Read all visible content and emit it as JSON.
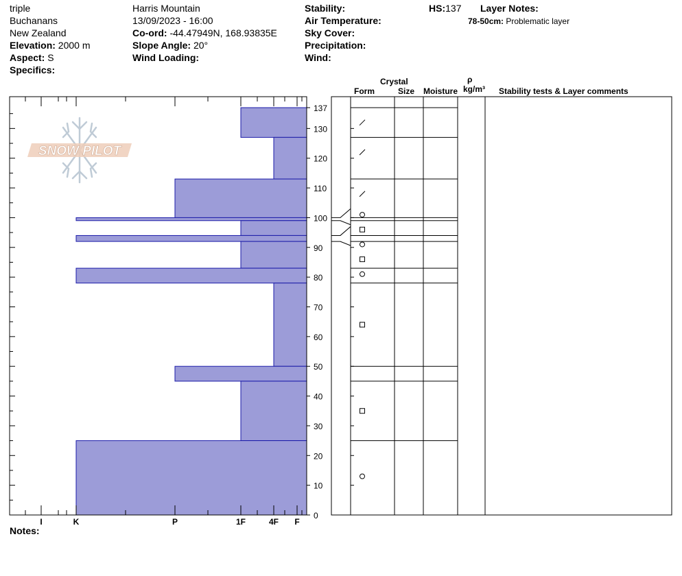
{
  "header": {
    "observer": "triple",
    "range": "Buchanans",
    "country": "New Zealand",
    "elevation_label": "Elevation:",
    "elevation_value": "2000 m",
    "aspect_label": "Aspect:",
    "aspect_value": "S",
    "specifics_label": "Specifics:",
    "location": "Harris Mountain",
    "datetime": "13/09/2023 - 16:00",
    "coord_label": "Co-ord:",
    "coord_value": "-44.47949N, 168.93835E",
    "slope_label": "Slope Angle:",
    "slope_value": "20°",
    "wind_loading_label": "Wind Loading:",
    "stability_label": "Stability:",
    "air_temp_label": "Air Temperature:",
    "sky_cover_label": "Sky Cover:",
    "precip_label": "Precipitation:",
    "wind_label": "Wind:",
    "hs_label": "HS:",
    "hs_value": "137",
    "layer_notes_label": "Layer Notes:",
    "layer_note_range": "78-50cm:",
    "layer_note_text": "Problematic layer"
  },
  "columns": {
    "crystal": "Crystal",
    "form": "Form",
    "size": "Size",
    "moisture": "Moisture",
    "rho": "ρ",
    "density_unit": "kg/m³",
    "stability": "Stability tests & Layer comments"
  },
  "logo": {
    "text": "SNOW PILOT"
  },
  "notes_label": "Notes:",
  "colors": {
    "bar_fill": "#9c9cd8",
    "bar_stroke": "#1a1aa8"
  },
  "chart_data": {
    "type": "bar",
    "orientation": "horizontal",
    "ylim": [
      0,
      137
    ],
    "y_ticks": [
      0,
      10,
      20,
      30,
      40,
      50,
      60,
      70,
      80,
      90,
      100,
      110,
      120,
      130,
      137
    ],
    "hardness_ticks": [
      "I",
      "K",
      "P",
      "1F",
      "4F",
      "F"
    ],
    "layers": [
      {
        "top": 137,
        "bottom": 127,
        "hardness": "1F"
      },
      {
        "top": 127,
        "bottom": 113,
        "hardness": "4F"
      },
      {
        "top": 113,
        "bottom": 100,
        "hardness": "P"
      },
      {
        "top": 100,
        "bottom": 99,
        "hardness": "K"
      },
      {
        "top": 99,
        "bottom": 94,
        "hardness": "1F"
      },
      {
        "top": 94,
        "bottom": 92,
        "hardness": "K"
      },
      {
        "top": 92,
        "bottom": 83,
        "hardness": "1F"
      },
      {
        "top": 83,
        "bottom": 78,
        "hardness": "K"
      },
      {
        "top": 78,
        "bottom": 50,
        "hardness": "4F"
      },
      {
        "top": 50,
        "bottom": 45,
        "hardness": "P"
      },
      {
        "top": 45,
        "bottom": 25,
        "hardness": "1F"
      },
      {
        "top": 25,
        "bottom": 0,
        "hardness": "K"
      }
    ],
    "grain_forms": [
      {
        "depth": 132,
        "form": "decomposing"
      },
      {
        "depth": 122,
        "form": "decomposing"
      },
      {
        "depth": 108,
        "form": "decomposing"
      },
      {
        "depth": 101,
        "form": "rounded"
      },
      {
        "depth": 96,
        "form": "faceted"
      },
      {
        "depth": 91,
        "form": "rounded"
      },
      {
        "depth": 86,
        "form": "faceted"
      },
      {
        "depth": 81,
        "form": "rounded"
      },
      {
        "depth": 64,
        "form": "faceted"
      },
      {
        "depth": 35,
        "form": "faceted"
      },
      {
        "depth": 13,
        "form": "rounded"
      }
    ]
  }
}
